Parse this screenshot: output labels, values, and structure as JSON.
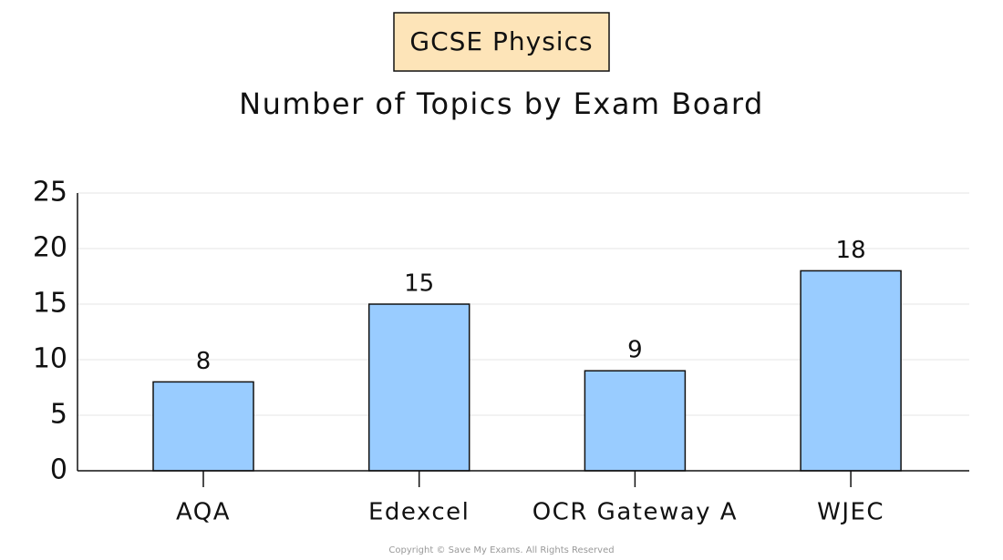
{
  "chart_data": {
    "type": "bar",
    "badge": "GCSE Physics",
    "title": "Number of Topics by Exam Board",
    "categories": [
      "AQA",
      "Edexcel",
      "OCR Gateway A",
      "WJEC"
    ],
    "values": [
      8,
      15,
      9,
      18
    ],
    "color": "#99ccff",
    "ylim": [
      0,
      25
    ],
    "yticks": [
      0,
      5,
      10,
      15,
      20,
      25
    ],
    "grid": true
  },
  "copyright": "Copyright © Save My Exams. All Rights Reserved"
}
